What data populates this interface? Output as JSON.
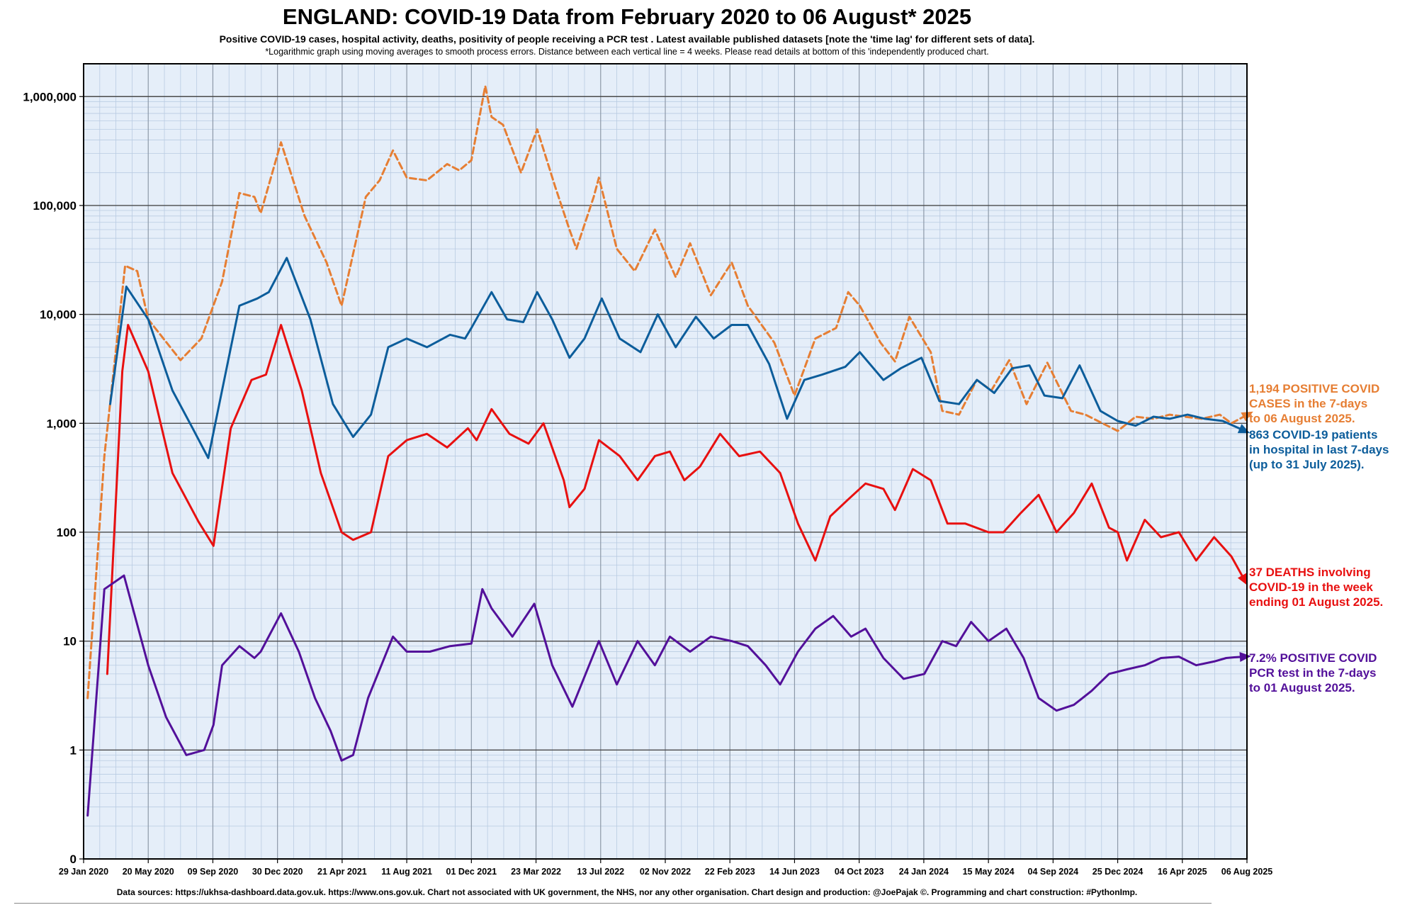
{
  "header": {
    "title": "ENGLAND: COVID-19 Data from February 2020 to 06 August* 2025",
    "subtitle": "Positive COVID-19 cases, hospital activity, deaths, positivity of people receiving a PCR test .  Latest available published datasets [note the 'time lag' for different sets of data].",
    "note": "*Logarithmic graph using moving averages to smooth process errors. Distance between each vertical line = 4 weeks. Please read details at bottom of this 'independently produced chart."
  },
  "footer": {
    "sources": "Data sources: https://ukhsa-dashboard.data.gov.uk.    https://www.ons.gov.uk.    Chart not associated with UK government, the NHS, nor any other organisation.    Chart design and production: @JoePajak ©.    Programming and chart construction: #PythonImp."
  },
  "annotations": {
    "cases": "1,194 POSITIVE COVID\nCASES in the 7-days\nto 06 August 2025.",
    "hospital": "863 COVID-19 patients\nin hospital in last 7-days\n(up to 31 July 2025).",
    "deaths": "37 DEATHS involving\nCOVID-19 in the week\nending 01 August 2025.",
    "pcr": "7.2% POSITIVE COVID\nPCR test in the 7-days\nto 01 August 2025."
  },
  "colors": {
    "cases": "#e67e33",
    "hospital": "#0c5d9b",
    "deaths": "#e81010",
    "pcr": "#53109a",
    "plot_bg": "#e5eef9"
  },
  "chart_data": {
    "type": "line",
    "yscale": "log",
    "ylim": [
      0.1,
      2000000
    ],
    "y_tick_values": [
      0.1,
      1,
      10,
      100,
      1000,
      10000,
      100000,
      1000000
    ],
    "y_tick_labels": [
      "0",
      "1",
      "10",
      "100",
      "1,000",
      "10,000",
      "100,000",
      "1,000,000"
    ],
    "xlim": [
      "2020-01-29",
      "2025-08-06"
    ],
    "x_tick_labels": [
      "29 Jan 2020",
      "20 May 2020",
      "09 Sep 2020",
      "30 Dec 2020",
      "21 Apr 2021",
      "11 Aug 2021",
      "01 Dec 2021",
      "23 Mar 2022",
      "13 Jul 2022",
      "02 Nov 2022",
      "22 Feb 2023",
      "14 Jun 2023",
      "04 Oct 2023",
      "24 Jan 2024",
      "15 May 2024",
      "04 Sep 2024",
      "25 Dec 2024",
      "16 Apr 2025",
      "06 Aug 2025"
    ],
    "x_tick_dates": [
      "2020-01-29",
      "2020-05-20",
      "2020-09-09",
      "2020-12-30",
      "2021-04-21",
      "2021-08-11",
      "2021-12-01",
      "2022-03-23",
      "2022-07-13",
      "2022-11-02",
      "2023-02-22",
      "2023-06-14",
      "2023-10-04",
      "2024-01-24",
      "2024-05-15",
      "2024-09-04",
      "2024-12-25",
      "2025-04-16",
      "2025-08-06"
    ],
    "grid": true,
    "series": [
      {
        "name": "cases",
        "style": "dashed",
        "x": [
          "2020-02-05",
          "2020-03-05",
          "2020-04-10",
          "2020-05-01",
          "2020-05-20",
          "2020-07-15",
          "2020-08-20",
          "2020-09-25",
          "2020-10-25",
          "2020-11-20",
          "2020-12-01",
          "2021-01-05",
          "2021-02-15",
          "2021-03-25",
          "2021-04-20",
          "2021-06-01",
          "2021-06-25",
          "2021-07-18",
          "2021-08-11",
          "2021-09-15",
          "2021-10-20",
          "2021-11-10",
          "2021-12-01",
          "2021-12-25",
          "2022-01-05",
          "2022-01-25",
          "2022-02-25",
          "2022-03-25",
          "2022-04-25",
          "2022-05-20",
          "2022-06-01",
          "2022-07-01",
          "2022-07-10",
          "2022-08-10",
          "2022-09-10",
          "2022-10-15",
          "2022-11-20",
          "2022-12-15",
          "2023-01-20",
          "2023-02-25",
          "2023-03-25",
          "2023-05-10",
          "2023-06-14",
          "2023-07-20",
          "2023-08-25",
          "2023-09-15",
          "2023-10-05",
          "2023-11-10",
          "2023-12-05",
          "2023-12-30",
          "2024-02-05",
          "2024-02-25",
          "2024-03-25",
          "2024-04-25",
          "2024-05-20",
          "2024-06-20",
          "2024-07-20",
          "2024-08-25",
          "2024-10-05",
          "2024-10-30",
          "2024-12-25",
          "2025-01-25",
          "2025-02-25",
          "2025-03-25",
          "2025-04-20",
          "2025-05-20",
          "2025-06-20",
          "2025-07-10",
          "2025-08-06"
        ],
        "values": [
          3,
          500,
          28000,
          25000,
          9000,
          3800,
          6000,
          20000,
          130000,
          120000,
          85000,
          380000,
          80000,
          30000,
          12000,
          120000,
          170000,
          320000,
          180000,
          170000,
          240000,
          210000,
          260000,
          1250000,
          650000,
          550000,
          200000,
          500000,
          150000,
          60000,
          40000,
          120000,
          180000,
          40000,
          25000,
          60000,
          22000,
          45000,
          15000,
          30000,
          12000,
          5500,
          1800,
          6000,
          7500,
          16000,
          12000,
          5500,
          3700,
          9500,
          4500,
          1300,
          1200,
          2500,
          2000,
          3800,
          1500,
          3600,
          1300,
          1200,
          850,
          1150,
          1100,
          1200,
          1150,
          1100,
          1200,
          1000,
          1194
        ]
      },
      {
        "name": "hospital",
        "style": "solid",
        "x": [
          "2020-03-15",
          "2020-04-12",
          "2020-05-20",
          "2020-07-01",
          "2020-08-05",
          "2020-09-01",
          "2020-10-25",
          "2020-11-25",
          "2020-12-15",
          "2021-01-15",
          "2021-02-25",
          "2021-04-05",
          "2021-05-10",
          "2021-06-10",
          "2021-07-10",
          "2021-08-11",
          "2021-09-15",
          "2021-10-25",
          "2021-11-20",
          "2021-12-01",
          "2022-01-05",
          "2022-02-01",
          "2022-03-01",
          "2022-03-25",
          "2022-04-20",
          "2022-05-20",
          "2022-06-15",
          "2022-07-15",
          "2022-08-15",
          "2022-09-20",
          "2022-10-20",
          "2022-11-20",
          "2022-12-25",
          "2023-01-25",
          "2023-02-25",
          "2023-03-25",
          "2023-05-01",
          "2023-06-01",
          "2023-07-01",
          "2023-08-01",
          "2023-09-10",
          "2023-10-05",
          "2023-11-15",
          "2023-12-15",
          "2024-01-20",
          "2024-02-20",
          "2024-03-25",
          "2024-04-25",
          "2024-05-25",
          "2024-06-25",
          "2024-07-25",
          "2024-08-20",
          "2024-09-20",
          "2024-10-20",
          "2024-11-25",
          "2024-12-25",
          "2025-01-25",
          "2025-02-25",
          "2025-03-25",
          "2025-04-25",
          "2025-05-25",
          "2025-06-25",
          "2025-07-31"
        ],
        "values": [
          1500,
          18000,
          9000,
          2000,
          900,
          480,
          12000,
          14000,
          16000,
          33000,
          9000,
          1500,
          750,
          1200,
          5000,
          6000,
          5000,
          6500,
          6000,
          7500,
          16000,
          9000,
          8500,
          16000,
          9000,
          4000,
          6000,
          14000,
          6000,
          4500,
          10000,
          5000,
          9500,
          6000,
          8000,
          8000,
          3500,
          1100,
          2500,
          2800,
          3300,
          4500,
          2500,
          3200,
          4000,
          1600,
          1500,
          2500,
          1900,
          3200,
          3400,
          1800,
          1700,
          3400,
          1300,
          1050,
          950,
          1150,
          1100,
          1200,
          1100,
          1050,
          863
        ]
      },
      {
        "name": "deaths",
        "style": "solid",
        "x": [
          "2020-03-10",
          "2020-04-05",
          "2020-04-15",
          "2020-05-20",
          "2020-07-01",
          "2020-08-15",
          "2020-09-10",
          "2020-10-10",
          "2020-11-15",
          "2020-12-10",
          "2021-01-05",
          "2021-02-10",
          "2021-03-15",
          "2021-04-20",
          "2021-05-10",
          "2021-06-10",
          "2021-07-10",
          "2021-08-11",
          "2021-09-15",
          "2021-10-20",
          "2021-11-25",
          "2021-12-10",
          "2022-01-05",
          "2022-02-05",
          "2022-03-10",
          "2022-04-05",
          "2022-05-10",
          "2022-05-20",
          "2022-06-15",
          "2022-07-10",
          "2022-08-15",
          "2022-09-15",
          "2022-10-15",
          "2022-11-10",
          "2022-12-05",
          "2023-01-01",
          "2023-02-05",
          "2023-03-10",
          "2023-04-15",
          "2023-05-20",
          "2023-06-20",
          "2023-07-20",
          "2023-08-15",
          "2023-09-15",
          "2023-10-15",
          "2023-11-15",
          "2023-12-05",
          "2024-01-05",
          "2024-02-05",
          "2024-03-05",
          "2024-04-05",
          "2024-05-15",
          "2024-06-10",
          "2024-07-10",
          "2024-08-10",
          "2024-09-10",
          "2024-10-10",
          "2024-11-10",
          "2024-12-10",
          "2024-12-25",
          "2025-01-10",
          "2025-02-10",
          "2025-03-10",
          "2025-04-10",
          "2025-05-10",
          "2025-06-10",
          "2025-07-10",
          "2025-08-01"
        ],
        "values": [
          5,
          3000,
          8000,
          3000,
          350,
          125,
          75,
          900,
          2500,
          2800,
          8000,
          2000,
          350,
          100,
          85,
          100,
          500,
          700,
          800,
          600,
          900,
          700,
          1350,
          800,
          650,
          1000,
          300,
          170,
          250,
          700,
          500,
          300,
          500,
          550,
          300,
          400,
          800,
          500,
          550,
          350,
          120,
          55,
          140,
          200,
          280,
          250,
          160,
          380,
          300,
          120,
          120,
          100,
          100,
          150,
          220,
          100,
          150,
          280,
          110,
          100,
          55,
          130,
          90,
          100,
          55,
          90,
          60,
          37
        ]
      },
      {
        "name": "pcr",
        "style": "solid",
        "x": [
          "2020-02-05",
          "2020-03-05",
          "2020-04-08",
          "2020-05-20",
          "2020-06-20",
          "2020-07-25",
          "2020-08-25",
          "2020-09-10",
          "2020-09-25",
          "2020-10-25",
          "2020-11-20",
          "2020-12-01",
          "2021-01-05",
          "2021-02-05",
          "2021-03-05",
          "2021-04-01",
          "2021-04-20",
          "2021-05-10",
          "2021-06-05",
          "2021-07-18",
          "2021-08-11",
          "2021-09-20",
          "2021-10-25",
          "2021-12-01",
          "2021-12-20",
          "2022-01-05",
          "2022-02-10",
          "2022-03-20",
          "2022-04-20",
          "2022-05-25",
          "2022-07-10",
          "2022-08-10",
          "2022-09-15",
          "2022-10-15",
          "2022-11-10",
          "2022-12-15",
          "2023-01-20",
          "2023-02-25",
          "2023-03-25",
          "2023-04-25",
          "2023-05-20",
          "2023-06-20",
          "2023-07-20",
          "2023-08-20",
          "2023-09-20",
          "2023-10-15",
          "2023-11-15",
          "2023-12-20",
          "2024-01-25",
          "2024-02-25",
          "2024-03-20",
          "2024-04-15",
          "2024-05-15",
          "2024-06-15",
          "2024-07-15",
          "2024-08-10",
          "2024-09-10",
          "2024-10-10",
          "2024-11-10",
          "2024-12-10",
          "2025-01-10",
          "2025-02-10",
          "2025-03-10",
          "2025-04-10",
          "2025-05-10",
          "2025-06-10",
          "2025-07-01",
          "2025-07-15",
          "2025-08-01"
        ],
        "values": [
          0.25,
          30,
          40,
          6,
          2,
          0.9,
          1,
          1.7,
          6,
          9,
          7,
          8,
          18,
          8,
          3,
          1.5,
          0.8,
          0.9,
          3,
          11,
          8,
          8,
          9,
          9.5,
          30,
          20,
          11,
          22,
          6,
          2.5,
          10,
          4,
          10,
          6,
          11,
          8,
          11,
          10,
          9,
          6,
          4,
          8,
          13,
          17,
          11,
          13,
          7,
          4.5,
          5,
          10,
          9,
          15,
          10,
          13,
          7,
          3,
          2.3,
          2.6,
          3.5,
          5,
          5.5,
          6,
          7,
          7.2,
          6,
          6.5,
          7,
          7.1,
          7.2
        ]
      }
    ]
  }
}
